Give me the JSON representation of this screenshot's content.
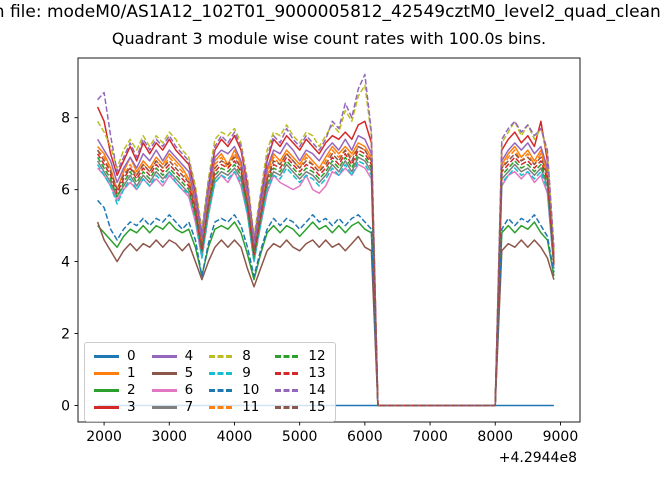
{
  "titles": {
    "suptitle": "m file: modeM0/AS1A12_102T01_9000005812_42549cztM0_level2_quad_clean",
    "axes_title": "Quadrant 3 module wise count rates with 100.0s bins."
  },
  "chart_data": {
    "type": "line",
    "title": "Quadrant 3 module wise count rates with 100.0s bins.",
    "xlabel": "",
    "ylabel": "",
    "x_offset_text": "+4.2944e8",
    "xlim": [
      1600,
      9300
    ],
    "ylim": [
      -0.46,
      9.66
    ],
    "x_ticks": [
      2000,
      3000,
      4000,
      5000,
      6000,
      7000,
      8000,
      9000
    ],
    "y_ticks": [
      0,
      2,
      4,
      6,
      8
    ],
    "grid": false,
    "legend_position": "lower left",
    "bin_seconds_label": "100.0s",
    "x": [
      1900,
      2000,
      2100,
      2200,
      2300,
      2400,
      2500,
      2600,
      2700,
      2800,
      2900,
      3000,
      3100,
      3200,
      3300,
      3400,
      3500,
      3600,
      3700,
      3800,
      3900,
      4000,
      4100,
      4200,
      4300,
      4400,
      4500,
      4600,
      4700,
      4800,
      4900,
      5000,
      5100,
      5200,
      5300,
      5400,
      5500,
      5600,
      5700,
      5800,
      5900,
      6000,
      6100,
      6200,
      6300,
      6400,
      6500,
      6600,
      6700,
      6800,
      6900,
      7000,
      7100,
      7200,
      7300,
      7400,
      7500,
      7600,
      7700,
      7800,
      7900,
      8000,
      8100,
      8200,
      8300,
      8400,
      8500,
      8600,
      8700,
      8800,
      8900
    ],
    "series": [
      {
        "name": "0",
        "color": "#1f77b4",
        "dash": false,
        "values": [
          0,
          0,
          0,
          0,
          0,
          0,
          0,
          0,
          0,
          0,
          0,
          0,
          0,
          0,
          0,
          0,
          0,
          0,
          0,
          0,
          0,
          0,
          0,
          0,
          0,
          0,
          0,
          0,
          0,
          0,
          0,
          0,
          0,
          0,
          0,
          0,
          0,
          0,
          0,
          0,
          0,
          0,
          0,
          0,
          0,
          0,
          0,
          0,
          0,
          0,
          0,
          0,
          0,
          0,
          0,
          0,
          0,
          0,
          0,
          0,
          0,
          0,
          0,
          0,
          0,
          0,
          0,
          0,
          0,
          0,
          0
        ]
      },
      {
        "name": "1",
        "color": "#ff7f0e",
        "dash": false,
        "values": [
          7.2,
          7.0,
          6.6,
          6.0,
          6.5,
          6.9,
          6.5,
          6.8,
          6.6,
          6.9,
          6.7,
          7.0,
          6.8,
          6.6,
          6.3,
          5.6,
          4.5,
          5.8,
          6.8,
          7.0,
          6.7,
          7.1,
          6.7,
          5.8,
          4.3,
          5.4,
          6.5,
          7.0,
          6.8,
          7.1,
          6.9,
          6.7,
          7.0,
          6.8,
          6.6,
          6.9,
          7.2,
          7.0,
          7.2,
          7.0,
          7.3,
          7.2,
          6.9,
          0,
          0,
          0,
          0,
          0,
          0,
          0,
          0,
          0,
          0,
          0,
          0,
          0,
          0,
          0,
          0,
          0,
          0,
          0,
          6.7,
          7.0,
          7.2,
          6.9,
          7.1,
          6.8,
          7.1,
          6.5,
          4.0
        ]
      },
      {
        "name": "2",
        "color": "#2ca02c",
        "dash": false,
        "values": [
          5.0,
          4.8,
          4.6,
          4.4,
          4.7,
          4.9,
          4.8,
          5.0,
          4.8,
          5.0,
          4.9,
          5.1,
          4.9,
          4.8,
          4.9,
          4.4,
          3.6,
          4.4,
          4.9,
          5.0,
          4.9,
          5.1,
          4.8,
          4.2,
          3.5,
          4.2,
          4.8,
          5.0,
          4.8,
          5.0,
          4.9,
          4.7,
          4.9,
          5.1,
          4.9,
          5.0,
          4.8,
          5.0,
          4.8,
          5.0,
          5.1,
          4.9,
          4.8,
          0,
          0,
          0,
          0,
          0,
          0,
          0,
          0,
          0,
          0,
          0,
          0,
          0,
          0,
          0,
          0,
          0,
          0,
          0,
          4.8,
          5.0,
          4.8,
          5.0,
          4.9,
          5.1,
          4.8,
          4.6,
          3.6
        ]
      },
      {
        "name": "3",
        "color": "#d62728",
        "dash": false,
        "values": [
          8.3,
          7.9,
          7.0,
          6.4,
          6.8,
          7.2,
          6.8,
          7.3,
          7.0,
          7.3,
          7.1,
          7.4,
          7.1,
          6.9,
          6.7,
          5.9,
          4.7,
          6.1,
          7.1,
          7.4,
          7.2,
          7.5,
          7.1,
          6.1,
          4.6,
          5.7,
          6.8,
          7.4,
          7.2,
          7.5,
          7.3,
          7.1,
          7.4,
          7.2,
          7.0,
          7.3,
          7.5,
          7.4,
          7.6,
          7.4,
          7.8,
          7.9,
          7.3,
          0,
          0,
          0,
          0,
          0,
          0,
          0,
          0,
          0,
          0,
          0,
          0,
          0,
          0,
          0,
          0,
          0,
          0,
          0,
          7.1,
          7.4,
          7.6,
          7.3,
          7.5,
          7.2,
          7.9,
          6.8,
          4.2
        ]
      },
      {
        "name": "4",
        "color": "#9467bd",
        "dash": false,
        "values": [
          7.4,
          7.1,
          6.8,
          6.2,
          6.6,
          6.9,
          6.6,
          7.0,
          6.8,
          7.1,
          6.8,
          7.1,
          6.9,
          6.7,
          6.5,
          5.7,
          4.6,
          5.9,
          6.9,
          7.1,
          7.0,
          7.2,
          6.8,
          5.9,
          4.4,
          5.5,
          6.6,
          7.1,
          7.0,
          7.3,
          7.1,
          6.8,
          7.1,
          7.0,
          6.8,
          7.1,
          7.3,
          7.1,
          7.4,
          7.1,
          7.5,
          7.4,
          7.0,
          0,
          0,
          0,
          0,
          0,
          0,
          0,
          0,
          0,
          0,
          0,
          0,
          0,
          0,
          0,
          0,
          0,
          0,
          0,
          6.8,
          7.1,
          7.3,
          7.1,
          7.3,
          7.0,
          7.2,
          6.6,
          4.1
        ]
      },
      {
        "name": "5",
        "color": "#8c564b",
        "dash": false,
        "values": [
          5.1,
          4.6,
          4.3,
          4.0,
          4.3,
          4.5,
          4.3,
          4.5,
          4.4,
          4.6,
          4.4,
          4.6,
          4.5,
          4.3,
          4.5,
          4.0,
          3.5,
          4.0,
          4.4,
          4.6,
          4.4,
          4.6,
          4.4,
          3.8,
          3.3,
          3.8,
          4.3,
          4.5,
          4.4,
          4.6,
          4.4,
          4.3,
          4.5,
          4.6,
          4.4,
          4.6,
          4.4,
          4.5,
          4.3,
          4.5,
          4.7,
          4.4,
          4.3,
          0,
          0,
          0,
          0,
          0,
          0,
          0,
          0,
          0,
          0,
          0,
          0,
          0,
          0,
          0,
          0,
          0,
          0,
          0,
          4.3,
          4.5,
          4.4,
          4.6,
          4.4,
          4.6,
          4.4,
          4.1,
          3.5
        ]
      },
      {
        "name": "6",
        "color": "#e377c2",
        "dash": false,
        "values": [
          6.6,
          6.4,
          6.1,
          5.7,
          6.0,
          6.2,
          6.0,
          6.3,
          6.1,
          6.3,
          6.1,
          6.4,
          6.2,
          6.0,
          5.8,
          5.1,
          4.1,
          5.3,
          6.2,
          6.4,
          6.2,
          6.5,
          6.1,
          5.3,
          4.0,
          5.0,
          5.9,
          6.4,
          6.2,
          6.1,
          6.0,
          6.1,
          6.4,
          6.0,
          5.9,
          6.1,
          6.5,
          6.4,
          6.6,
          6.4,
          6.7,
          6.6,
          6.3,
          0,
          0,
          0,
          0,
          0,
          0,
          0,
          0,
          0,
          0,
          0,
          0,
          0,
          0,
          0,
          0,
          0,
          0,
          0,
          6.1,
          6.4,
          6.5,
          6.3,
          6.5,
          6.2,
          6.4,
          5.9,
          3.8
        ]
      },
      {
        "name": "7",
        "color": "#7f7f7f",
        "dash": false,
        "values": [
          6.8,
          6.5,
          6.2,
          5.8,
          6.1,
          6.4,
          6.1,
          6.4,
          6.2,
          6.5,
          6.3,
          6.5,
          6.3,
          6.1,
          5.9,
          5.3,
          4.2,
          5.4,
          6.3,
          6.5,
          6.4,
          6.6,
          6.3,
          5.4,
          4.1,
          5.1,
          6.1,
          6.5,
          6.4,
          6.7,
          6.5,
          6.3,
          6.5,
          6.4,
          6.2,
          6.4,
          6.7,
          6.5,
          6.8,
          6.5,
          6.9,
          6.8,
          6.5,
          0,
          0,
          0,
          0,
          0,
          0,
          0,
          0,
          0,
          0,
          0,
          0,
          0,
          0,
          0,
          0,
          0,
          0,
          0,
          6.3,
          6.5,
          6.7,
          6.5,
          6.6,
          6.4,
          6.6,
          6.1,
          3.9
        ]
      },
      {
        "name": "8",
        "color": "#bcbd22",
        "dash": true,
        "values": [
          7.9,
          7.6,
          7.2,
          6.6,
          7.1,
          7.4,
          7.1,
          7.5,
          7.2,
          7.5,
          7.3,
          7.6,
          7.4,
          7.1,
          6.9,
          6.1,
          4.9,
          6.3,
          7.4,
          7.6,
          7.5,
          7.7,
          7.3,
          6.3,
          4.7,
          5.9,
          7.1,
          7.6,
          7.5,
          7.8,
          7.5,
          7.3,
          7.6,
          7.5,
          7.2,
          7.5,
          7.8,
          7.6,
          8.2,
          7.9,
          8.6,
          8.9,
          7.5,
          0,
          0,
          0,
          0,
          0,
          0,
          0,
          0,
          0,
          0,
          0,
          0,
          0,
          0,
          0,
          0,
          0,
          0,
          0,
          7.3,
          7.6,
          7.9,
          7.5,
          7.8,
          7.4,
          7.7,
          7.0,
          4.3
        ]
      },
      {
        "name": "9",
        "color": "#17becf",
        "dash": true,
        "values": [
          6.7,
          6.4,
          6.1,
          5.6,
          6.0,
          6.3,
          6.0,
          6.3,
          6.1,
          6.4,
          6.2,
          6.5,
          6.2,
          6.0,
          5.9,
          5.2,
          4.1,
          5.3,
          6.2,
          6.4,
          6.3,
          6.5,
          6.2,
          5.3,
          4.0,
          5.0,
          6.0,
          6.4,
          6.3,
          6.6,
          6.4,
          6.2,
          6.4,
          6.3,
          6.1,
          6.3,
          6.6,
          6.4,
          6.7,
          6.4,
          6.8,
          6.7,
          6.4,
          0,
          0,
          0,
          0,
          0,
          0,
          0,
          0,
          0,
          0,
          0,
          0,
          0,
          0,
          0,
          0,
          0,
          0,
          0,
          6.2,
          6.4,
          6.6,
          6.4,
          6.5,
          6.3,
          6.5,
          6.0,
          3.8
        ]
      },
      {
        "name": "10",
        "color": "#1f77b4",
        "dash": true,
        "values": [
          5.7,
          5.5,
          4.9,
          4.6,
          4.9,
          5.1,
          5.0,
          5.2,
          5.0,
          5.2,
          5.1,
          5.3,
          5.1,
          4.9,
          5.1,
          4.6,
          3.6,
          4.5,
          5.1,
          5.2,
          5.1,
          5.3,
          5.0,
          4.4,
          3.6,
          4.3,
          4.9,
          5.2,
          5.0,
          5.2,
          5.1,
          4.9,
          5.1,
          5.3,
          5.1,
          5.2,
          5.0,
          5.2,
          5.0,
          5.2,
          5.3,
          5.1,
          4.9,
          0,
          0,
          0,
          0,
          0,
          0,
          0,
          0,
          0,
          0,
          0,
          0,
          0,
          0,
          0,
          0,
          0,
          0,
          0,
          4.9,
          5.2,
          5.0,
          5.2,
          5.1,
          5.3,
          5.0,
          4.7,
          3.7
        ]
      },
      {
        "name": "11",
        "color": "#ff7f0e",
        "dash": true,
        "values": [
          7.1,
          6.9,
          6.5,
          6.0,
          6.4,
          6.7,
          6.4,
          6.7,
          6.5,
          6.8,
          6.6,
          6.9,
          6.7,
          6.5,
          6.2,
          5.5,
          4.4,
          5.7,
          6.7,
          6.9,
          6.6,
          7.0,
          6.6,
          5.7,
          4.2,
          5.3,
          6.4,
          6.9,
          6.7,
          7.0,
          6.8,
          6.6,
          6.9,
          6.7,
          6.5,
          6.8,
          7.1,
          6.9,
          7.1,
          6.9,
          7.2,
          7.1,
          6.8,
          0,
          0,
          0,
          0,
          0,
          0,
          0,
          0,
          0,
          0,
          0,
          0,
          0,
          0,
          0,
          0,
          0,
          0,
          0,
          6.6,
          6.9,
          7.1,
          6.8,
          7.0,
          6.7,
          7.0,
          6.4,
          3.9
        ]
      },
      {
        "name": "12",
        "color": "#2ca02c",
        "dash": true,
        "values": [
          6.9,
          6.6,
          6.3,
          5.8,
          6.2,
          6.5,
          6.2,
          6.5,
          6.3,
          6.6,
          6.4,
          6.6,
          6.4,
          6.2,
          6.0,
          5.3,
          4.3,
          5.5,
          6.4,
          6.6,
          6.5,
          6.7,
          6.4,
          5.5,
          4.1,
          5.2,
          6.2,
          6.6,
          6.5,
          6.8,
          6.6,
          6.4,
          6.6,
          6.5,
          6.3,
          6.5,
          6.8,
          6.6,
          6.9,
          6.6,
          7.0,
          6.9,
          6.6,
          0,
          0,
          0,
          0,
          0,
          0,
          0,
          0,
          0,
          0,
          0,
          0,
          0,
          0,
          0,
          0,
          0,
          0,
          0,
          6.4,
          6.6,
          6.8,
          6.6,
          6.7,
          6.5,
          6.7,
          6.2,
          4.0
        ]
      },
      {
        "name": "13",
        "color": "#d62728",
        "dash": true,
        "values": [
          7.0,
          6.7,
          6.4,
          5.9,
          6.3,
          6.6,
          6.3,
          6.6,
          6.4,
          6.7,
          6.5,
          6.7,
          6.5,
          6.3,
          6.1,
          5.4,
          4.3,
          5.6,
          6.5,
          6.7,
          6.6,
          6.8,
          6.5,
          5.6,
          4.2,
          5.2,
          6.3,
          6.7,
          6.6,
          6.9,
          6.7,
          6.5,
          6.7,
          6.6,
          6.4,
          6.6,
          6.9,
          6.7,
          7.0,
          6.7,
          7.1,
          7.0,
          6.7,
          0,
          0,
          0,
          0,
          0,
          0,
          0,
          0,
          0,
          0,
          0,
          0,
          0,
          0,
          0,
          0,
          0,
          0,
          0,
          6.5,
          6.7,
          6.9,
          6.7,
          6.8,
          6.6,
          6.8,
          6.3,
          3.9
        ]
      },
      {
        "name": "14",
        "color": "#9467bd",
        "dash": true,
        "values": [
          8.5,
          8.7,
          7.5,
          6.5,
          6.9,
          7.3,
          6.9,
          7.4,
          7.1,
          7.4,
          7.2,
          7.5,
          7.2,
          7.0,
          6.8,
          6.0,
          4.8,
          6.2,
          7.2,
          7.5,
          7.3,
          7.6,
          7.2,
          6.2,
          4.6,
          5.8,
          6.9,
          7.5,
          7.3,
          7.7,
          7.4,
          7.2,
          7.5,
          7.3,
          7.1,
          7.4,
          7.9,
          7.7,
          8.4,
          8.0,
          8.8,
          9.2,
          7.6,
          0,
          0,
          0,
          0,
          0,
          0,
          0,
          0,
          0,
          0,
          0,
          0,
          0,
          0,
          0,
          0,
          0,
          0,
          0,
          7.4,
          7.7,
          7.9,
          7.6,
          7.8,
          7.5,
          7.7,
          7.1,
          4.4
        ]
      },
      {
        "name": "15",
        "color": "#8c564b",
        "dash": true,
        "values": [
          7.1,
          6.8,
          6.5,
          6.0,
          6.4,
          6.6,
          6.4,
          6.7,
          6.5,
          6.8,
          6.6,
          6.8,
          6.6,
          6.4,
          6.2,
          5.5,
          4.4,
          5.6,
          6.6,
          6.8,
          6.7,
          6.9,
          6.6,
          5.6,
          4.3,
          5.3,
          6.3,
          6.8,
          6.7,
          7.0,
          6.8,
          6.6,
          6.8,
          6.7,
          6.5,
          6.7,
          7.0,
          6.8,
          7.1,
          6.8,
          7.2,
          7.1,
          6.8,
          0,
          0,
          0,
          0,
          0,
          0,
          0,
          0,
          0,
          0,
          0,
          0,
          0,
          0,
          0,
          0,
          0,
          0,
          0,
          6.6,
          6.8,
          7.0,
          6.8,
          6.9,
          6.7,
          6.9,
          6.4,
          4.0
        ]
      }
    ]
  }
}
